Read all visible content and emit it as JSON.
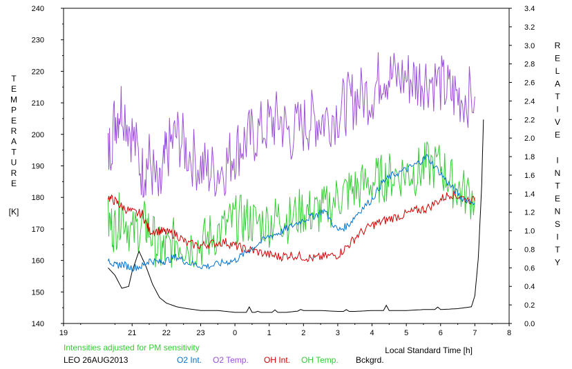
{
  "chart_data": {
    "type": "line",
    "title": "",
    "left_axis_label": "TEMPERATURE",
    "left_axis_unit": "[K]",
    "right_axis_label_words": [
      "RELATIVE",
      "INTENSITY"
    ],
    "xlabel": "Local Standard Time [h]",
    "note": "Intensities adjusted for PM sensitivity",
    "station": "LEO 26AUG2013",
    "x_ticks": [
      "19",
      "21",
      "22",
      "23",
      "0",
      "1",
      "2",
      "3",
      "4",
      "5",
      "6",
      "7",
      "8"
    ],
    "left_ticks": [
      "140",
      "150",
      "160",
      "170",
      "180",
      "190",
      "200",
      "210",
      "220",
      "230",
      "240"
    ],
    "right_ticks": [
      "0.0",
      "0.2",
      "0.4",
      "0.6",
      "0.8",
      "1.0",
      "1.2",
      "1.4",
      "1.6",
      "1.8",
      "2.0",
      "2.2",
      "2.4",
      "2.6",
      "2.8",
      "3.0",
      "3.2",
      "3.4"
    ],
    "xlim": [
      19,
      32
    ],
    "ylim_left": [
      140,
      240
    ],
    "ylim_right": [
      0.0,
      3.4
    ],
    "legend_position": "bottom",
    "legend": [
      {
        "name": "O2 Int.",
        "color": "#0070d0"
      },
      {
        "name": "O2 Temp.",
        "color": "#9b4fd8"
      },
      {
        "name": "OH Int.",
        "color": "#d00000"
      },
      {
        "name": "OH Temp.",
        "color": "#33cc33"
      },
      {
        "name": "Bckgrd.",
        "color": "#000000"
      }
    ],
    "note_color": "#33cc33",
    "series": [
      {
        "name": "O2 Temp.",
        "axis": "left",
        "x": [
          20.3,
          20.5,
          20.7,
          21.0,
          21.3,
          21.5,
          21.8,
          22.0,
          22.3,
          22.6,
          23.0,
          23.3,
          23.7,
          24.0,
          24.3,
          24.6,
          25.0,
          25.3,
          25.6,
          26.0,
          26.3,
          26.6,
          27.0,
          27.3,
          27.6,
          28.0,
          28.3,
          28.6,
          29.0,
          29.3,
          29.6,
          30.0,
          30.3,
          30.6,
          31.0
        ],
        "y": [
          193,
          205,
          210,
          200,
          188,
          192,
          180,
          194,
          200,
          195,
          190,
          188,
          190,
          195,
          198,
          200,
          203,
          205,
          200,
          203,
          205,
          205,
          207,
          210,
          212,
          213,
          220,
          218,
          218,
          217,
          218,
          216,
          213,
          212,
          212
        ]
      },
      {
        "name": "OH Temp.",
        "axis": "left",
        "x": [
          20.3,
          20.5,
          20.7,
          21.0,
          21.3,
          21.5,
          21.8,
          22.0,
          22.3,
          22.6,
          23.0,
          23.3,
          23.7,
          24.0,
          24.3,
          24.6,
          25.0,
          25.3,
          25.6,
          26.0,
          26.3,
          26.6,
          27.0,
          27.3,
          27.6,
          28.0,
          28.3,
          28.6,
          29.0,
          29.3,
          29.6,
          30.0,
          30.3,
          30.6,
          31.0
        ],
        "y": [
          172,
          170,
          176,
          168,
          172,
          170,
          163,
          163,
          167,
          165,
          165,
          168,
          170,
          173,
          173,
          172,
          172,
          174,
          173,
          176,
          175,
          176,
          180,
          182,
          183,
          185,
          186,
          187,
          188,
          188,
          190,
          190,
          185,
          182,
          180
        ]
      },
      {
        "name": "O2 Int.",
        "axis": "right",
        "x": [
          20.3,
          20.5,
          20.7,
          21.0,
          21.3,
          21.5,
          21.8,
          22.0,
          22.3,
          22.6,
          23.0,
          23.3,
          23.7,
          24.0,
          24.3,
          24.6,
          25.0,
          25.3,
          25.6,
          26.0,
          26.3,
          26.6,
          27.0,
          27.3,
          27.6,
          28.0,
          28.3,
          28.6,
          29.0,
          29.3,
          29.6,
          30.0,
          30.3,
          30.6,
          31.0
        ],
        "y": [
          0.7,
          0.62,
          0.64,
          0.6,
          0.62,
          0.68,
          0.66,
          0.68,
          0.72,
          0.66,
          0.62,
          0.62,
          0.66,
          0.68,
          0.76,
          0.84,
          0.94,
          0.98,
          1.04,
          1.12,
          1.16,
          1.22,
          1.0,
          1.06,
          1.2,
          1.34,
          1.52,
          1.6,
          1.66,
          1.72,
          1.8,
          1.62,
          1.48,
          1.36,
          1.3
        ]
      },
      {
        "name": "OH Int.",
        "axis": "right",
        "x": [
          20.3,
          20.5,
          20.7,
          21.0,
          21.3,
          21.5,
          21.8,
          22.0,
          22.3,
          22.6,
          23.0,
          23.3,
          23.7,
          24.0,
          24.3,
          24.6,
          25.0,
          25.3,
          25.6,
          26.0,
          26.3,
          26.6,
          27.0,
          27.3,
          27.6,
          28.0,
          28.3,
          28.6,
          29.0,
          29.3,
          29.6,
          30.0,
          30.3,
          30.6,
          31.0
        ],
        "y": [
          1.36,
          1.32,
          1.26,
          1.2,
          1.18,
          1.0,
          1.0,
          0.98,
          0.96,
          0.86,
          0.84,
          0.86,
          0.88,
          0.84,
          0.8,
          0.78,
          0.74,
          0.72,
          0.74,
          0.72,
          0.7,
          0.72,
          0.74,
          0.84,
          0.96,
          1.06,
          1.1,
          1.14,
          1.18,
          1.22,
          1.24,
          1.34,
          1.4,
          1.36,
          1.32
        ]
      },
      {
        "name": "Bckgrd.",
        "axis": "right",
        "x": [
          20.3,
          20.5,
          20.7,
          20.9,
          21.0,
          21.2,
          21.4,
          21.6,
          21.8,
          22.0,
          22.3,
          22.6,
          23.0,
          23.5,
          24.0,
          24.5,
          25.0,
          25.5,
          26.0,
          26.5,
          27.0,
          27.5,
          28.0,
          28.5,
          29.0,
          29.5,
          30.0,
          30.5,
          30.9,
          31.0,
          31.1,
          31.2,
          31.25
        ],
        "y": [
          0.6,
          0.52,
          0.38,
          0.4,
          0.56,
          0.78,
          0.62,
          0.42,
          0.28,
          0.22,
          0.18,
          0.16,
          0.14,
          0.14,
          0.12,
          0.12,
          0.12,
          0.12,
          0.14,
          0.14,
          0.13,
          0.13,
          0.14,
          0.14,
          0.14,
          0.15,
          0.15,
          0.16,
          0.18,
          0.3,
          0.7,
          1.5,
          2.2
        ]
      }
    ]
  }
}
